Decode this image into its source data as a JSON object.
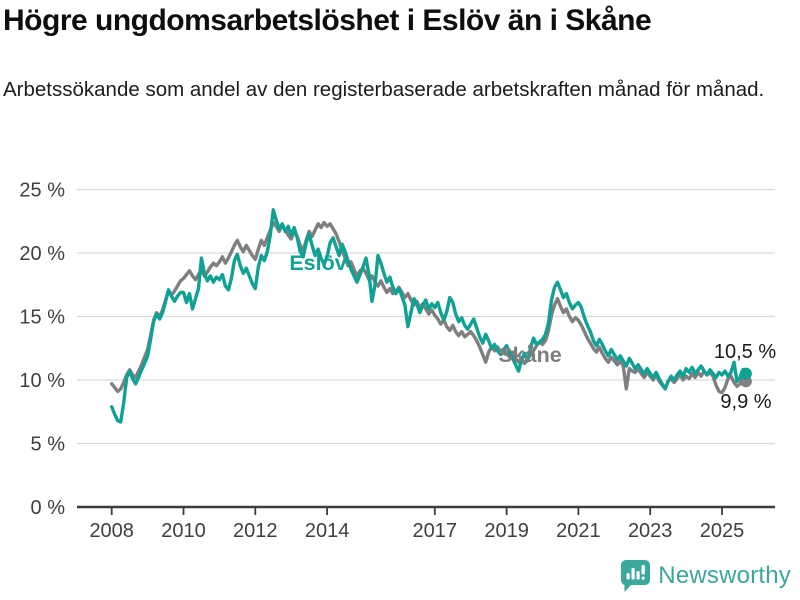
{
  "header": {
    "title": "Högre ungdomsarbetslöshet i Eslöv än i Skåne",
    "subtitle": "Arbetssökande som andel av den registerbaserade arbetskraften månad för månad."
  },
  "chart_data": {
    "type": "line",
    "unit": "%",
    "x_start": "2008-01",
    "x_end": "2025-09",
    "points_per_year": 12,
    "ylim": [
      0,
      25
    ],
    "grid": "horizontal",
    "legend_position": "inline-labels",
    "y_ticks": [
      0,
      5,
      10,
      15,
      20,
      25
    ],
    "y_tick_labels": [
      "0 %",
      "5 %",
      "10 %",
      "15 %",
      "20 %",
      "25 %"
    ],
    "x_tick_years": [
      2008,
      2010,
      2012,
      2014,
      2017,
      2019,
      2021,
      2023,
      2025
    ],
    "x_tick_labels": [
      "2008",
      "2010",
      "2012",
      "2014",
      "2017",
      "2019",
      "2021",
      "2023",
      "2025"
    ],
    "series": [
      {
        "name": "Skåne",
        "color": "#7f7f7f",
        "end_label": "9,9 %",
        "values": [
          9.7,
          9.4,
          9.1,
          9.3,
          9.8,
          10.4,
          10.8,
          10.4,
          10.2,
          10.7,
          11.2,
          11.8,
          12.4,
          13.5,
          14.7,
          15.3,
          15.0,
          15.5,
          16.3,
          17.0,
          16.7,
          17.0,
          17.4,
          17.8,
          18.0,
          18.3,
          18.6,
          18.2,
          17.9,
          18.3,
          18.7,
          18.2,
          18.5,
          18.9,
          19.2,
          19.0,
          19.3,
          19.7,
          19.2,
          19.6,
          20.1,
          20.6,
          21.0,
          20.5,
          20.1,
          20.6,
          20.2,
          19.8,
          19.5,
          20.3,
          21.0,
          20.6,
          21.2,
          21.8,
          22.4,
          22.1,
          21.7,
          22.2,
          21.8,
          21.4,
          21.1,
          21.7,
          21.3,
          20.6,
          20.2,
          21.0,
          21.7,
          21.3,
          21.8,
          22.3,
          22.0,
          22.4,
          22.1,
          22.3,
          21.9,
          21.5,
          20.9,
          20.2,
          19.6,
          19.0,
          19.3,
          18.7,
          18.2,
          18.6,
          18.8,
          18.4,
          17.9,
          18.2,
          17.7,
          17.4,
          17.8,
          17.3,
          16.9,
          17.2,
          16.8,
          17.0,
          17.3,
          16.9,
          16.5,
          16.8,
          16.3,
          15.9,
          16.2,
          15.7,
          16.0,
          15.6,
          15.2,
          15.5,
          15.1,
          14.8,
          14.4,
          14.7,
          14.2,
          13.9,
          14.3,
          13.8,
          13.5,
          13.8,
          13.4,
          13.6,
          13.8,
          13.5,
          13.1,
          12.6,
          12.0,
          11.4,
          12.2,
          12.6,
          12.3,
          12.6,
          12.2,
          12.4,
          12.1,
          11.8,
          12.2,
          11.7,
          11.4,
          11.7,
          11.3,
          11.6,
          12.0,
          12.3,
          12.7,
          13.0,
          12.8,
          13.1,
          13.9,
          15.1,
          15.9,
          16.4,
          15.8,
          15.3,
          15.6,
          15.0,
          14.6,
          14.9,
          14.7,
          14.3,
          13.8,
          13.3,
          12.9,
          12.5,
          12.2,
          12.6,
          12.1,
          11.7,
          11.4,
          11.8,
          11.5,
          11.2,
          11.5,
          11.1,
          9.3,
          10.9,
          10.7,
          10.6,
          10.9,
          10.5,
          10.2,
          10.6,
          10.3,
          10.0,
          10.4,
          9.9,
          9.6,
          9.3,
          9.9,
          10.1,
          9.8,
          10.1,
          10.4,
          10.0,
          10.3,
          10.1,
          10.5,
          10.2,
          10.6,
          10.3,
          10.7,
          10.4,
          10.6,
          10.3,
          9.6,
          9.1,
          9.0,
          9.4,
          10.1,
          10.3,
          9.8,
          9.5,
          9.7,
          10.2,
          9.9
        ]
      },
      {
        "name": "Eslöv",
        "color": "#0fa194",
        "end_label": "10,5 %",
        "values": [
          7.9,
          7.3,
          6.8,
          6.7,
          8.2,
          10.2,
          10.7,
          10.1,
          9.7,
          10.2,
          10.8,
          11.3,
          11.9,
          13.2,
          14.6,
          15.2,
          14.8,
          15.3,
          16.2,
          17.1,
          16.6,
          16.2,
          16.6,
          16.9,
          16.9,
          16.1,
          16.8,
          15.6,
          16.4,
          17.2,
          19.6,
          18.4,
          17.8,
          18.2,
          17.7,
          18.1,
          17.9,
          18.3,
          17.4,
          17.1,
          18.0,
          19.4,
          19.9,
          19.0,
          18.4,
          18.8,
          18.2,
          17.6,
          17.2,
          18.9,
          19.8,
          19.4,
          20.1,
          21.4,
          23.4,
          22.6,
          21.9,
          22.3,
          21.7,
          22.1,
          21.4,
          22.0,
          21.2,
          20.1,
          19.7,
          20.8,
          21.5,
          20.6,
          19.8,
          20.3,
          19.6,
          19.1,
          19.7,
          20.8,
          21.2,
          20.5,
          19.8,
          20.7,
          20.1,
          19.4,
          18.7,
          18.2,
          17.7,
          18.3,
          18.9,
          19.6,
          18.3,
          16.2,
          17.5,
          19.8,
          19.2,
          18.4,
          17.7,
          18.1,
          17.3,
          16.8,
          17.2,
          16.6,
          15.9,
          14.2,
          15.3,
          16.4,
          16.0,
          15.3,
          15.9,
          16.3,
          15.6,
          16.0,
          15.7,
          16.1,
          15.3,
          14.7,
          15.4,
          16.5,
          16.1,
          15.2,
          14.6,
          14.9,
          14.3,
          14.0,
          14.4,
          14.8,
          14.1,
          13.4,
          12.9,
          13.6,
          13.1,
          12.5,
          12.8,
          12.3,
          12.0,
          12.4,
          12.7,
          12.2,
          11.7,
          11.2,
          10.7,
          11.6,
          12.1,
          11.5,
          12.5,
          13.3,
          12.8,
          13.0,
          13.2,
          13.6,
          14.5,
          16.3,
          17.3,
          17.7,
          17.1,
          16.5,
          16.8,
          16.1,
          15.6,
          15.9,
          16.1,
          15.7,
          14.9,
          14.3,
          13.8,
          13.1,
          12.7,
          13.2,
          12.8,
          12.3,
          11.9,
          12.4,
          12.0,
          11.6,
          11.9,
          11.5,
          11.1,
          11.7,
          11.3,
          10.9,
          11.2,
          10.8,
          10.5,
          10.9,
          10.5,
          10.2,
          10.6,
          10.1,
          9.7,
          9.3,
          9.9,
          10.3,
          10.0,
          10.4,
          10.7,
          10.3,
          10.9,
          10.6,
          11.0,
          10.5,
          10.8,
          11.1,
          10.7,
          10.4,
          10.8,
          10.5,
          10.2,
          10.6,
          10.4,
          10.7,
          10.3,
          10.6,
          11.4,
          9.9,
          10.2,
          10.8,
          10.5
        ]
      }
    ]
  },
  "footer": {
    "brand": "Newsworthy"
  }
}
